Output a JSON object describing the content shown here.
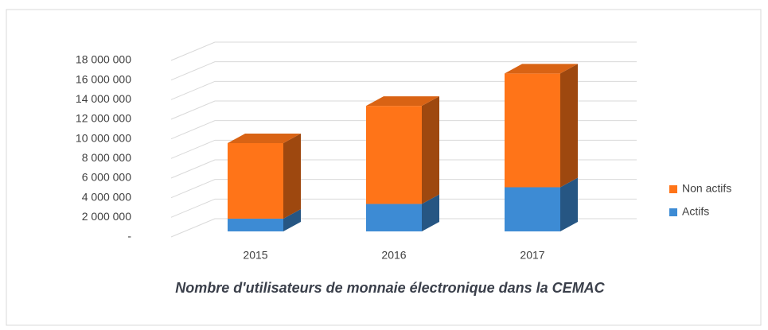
{
  "chart_data": {
    "type": "bar3d_stacked",
    "title": "Nombre d'utilisateurs de monnaie électronique dans la CEMAC",
    "categories": [
      "2015",
      "2016",
      "2017"
    ],
    "series": [
      {
        "name": "Actifs",
        "color": "#3d8bd4",
        "values": [
          1300000,
          2800000,
          4500000
        ]
      },
      {
        "name": "Non actifs",
        "color": "#ff7418",
        "values": [
          7700000,
          10000000,
          11600000
        ]
      }
    ],
    "ylim": [
      0,
      18000000
    ],
    "yticks": [
      {
        "value": 0,
        "label": "-"
      },
      {
        "value": 2000000,
        "label": "2 000 000"
      },
      {
        "value": 4000000,
        "label": "4 000 000"
      },
      {
        "value": 6000000,
        "label": "6 000 000"
      },
      {
        "value": 8000000,
        "label": "8 000 000"
      },
      {
        "value": 10000000,
        "label": "10 000 000"
      },
      {
        "value": 12000000,
        "label": "12 000 000"
      },
      {
        "value": 14000000,
        "label": "14 000 000"
      },
      {
        "value": 16000000,
        "label": "16 000 000"
      },
      {
        "value": 18000000,
        "label": "18 000 000"
      }
    ],
    "grid": true,
    "legend": "right"
  }
}
